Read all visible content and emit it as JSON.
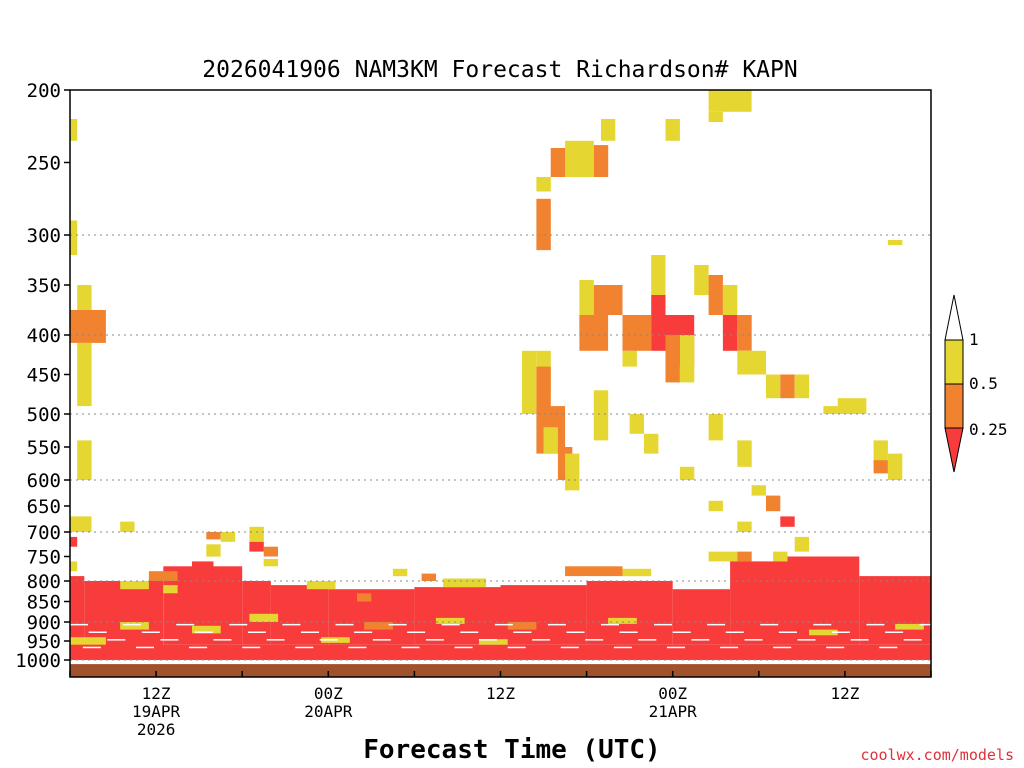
{
  "chart_data": {
    "type": "heatmap",
    "title": "2026041906 NAM3KM Forecast Richardson# KAPN",
    "xlabel": "Forecast Time (UTC)",
    "ylabel": "",
    "x_unit": "forecast hour",
    "xlim": [
      0,
      60
    ],
    "ylim": [
      1050,
      200
    ],
    "y_ticks": [
      200,
      250,
      300,
      350,
      400,
      450,
      500,
      550,
      600,
      650,
      700,
      750,
      800,
      850,
      900,
      950,
      1000
    ],
    "y_gridlines": [
      300,
      400,
      500,
      600,
      700,
      800,
      900,
      1000
    ],
    "x_ticks": [
      {
        "hour": 6,
        "line1": "12Z",
        "line2": "19APR",
        "line3": "2026"
      },
      {
        "hour": 18,
        "line1": "00Z",
        "line2": "20APR",
        "line3": ""
      },
      {
        "hour": 30,
        "line1": "12Z",
        "line2": "",
        "line3": ""
      },
      {
        "hour": 42,
        "line1": "00Z",
        "line2": "21APR",
        "line3": ""
      },
      {
        "hour": 54,
        "line1": "12Z",
        "line2": "",
        "line3": ""
      }
    ],
    "legend": {
      "position": "right",
      "labels": [
        "1",
        "0.5",
        "0.25"
      ],
      "bins": [
        {
          "range": "> 1",
          "color": "#ffffff"
        },
        {
          "range": "0.5 - 1",
          "color": "#e6d632"
        },
        {
          "range": "0.25 - 0.5",
          "color": "#f08230"
        },
        {
          "range": "< 0.25",
          "color": "#f83c3c"
        }
      ]
    },
    "colors": {
      "yellow": "#e6d632",
      "orange": "#f08230",
      "red": "#f83c3c",
      "ground": "#a0522d"
    },
    "ground_below_pressure": 1012,
    "cells_format": "[start_hour, end_hour, top_pressure, bottom_pressure, category]",
    "cells": [
      [
        0,
        0.5,
        220,
        235,
        "y"
      ],
      [
        0,
        0.5,
        290,
        320,
        "y"
      ],
      [
        0.5,
        1.5,
        350,
        390,
        "y"
      ],
      [
        0,
        2.5,
        375,
        410,
        "o"
      ],
      [
        0.5,
        1.5,
        410,
        490,
        "y"
      ],
      [
        0.5,
        1.5,
        540,
        600,
        "y"
      ],
      [
        0,
        1.5,
        670,
        700,
        "y"
      ],
      [
        3.5,
        4.5,
        680,
        700,
        "y"
      ],
      [
        0,
        0.5,
        710,
        730,
        "r"
      ],
      [
        0,
        0.5,
        760,
        780,
        "y"
      ],
      [
        9.5,
        10.5,
        700,
        715,
        "o"
      ],
      [
        10.5,
        11.5,
        700,
        720,
        "y"
      ],
      [
        9.5,
        10.5,
        725,
        750,
        "y"
      ],
      [
        12.5,
        13.5,
        690,
        720,
        "y"
      ],
      [
        12.5,
        13.5,
        720,
        740,
        "r"
      ],
      [
        13.5,
        14.5,
        730,
        750,
        "o"
      ],
      [
        13.5,
        14.5,
        755,
        770,
        "y"
      ],
      [
        32.5,
        33.5,
        260,
        270,
        "y"
      ],
      [
        32.5,
        33.5,
        275,
        315,
        "o"
      ],
      [
        33.5,
        35.5,
        240,
        260,
        "o"
      ],
      [
        34.5,
        36.5,
        235,
        260,
        "y"
      ],
      [
        37,
        38,
        220,
        235,
        "y"
      ],
      [
        36.5,
        37.5,
        238,
        260,
        "o"
      ],
      [
        41.5,
        42.5,
        220,
        235,
        "y"
      ],
      [
        44.5,
        47.5,
        200,
        215,
        "y"
      ],
      [
        44.5,
        45.5,
        215,
        222,
        "y"
      ],
      [
        57,
        58,
        305,
        310,
        "y"
      ],
      [
        31.5,
        32.5,
        420,
        500,
        "y"
      ],
      [
        32.5,
        33.5,
        420,
        470,
        "y"
      ],
      [
        32.5,
        33.5,
        440,
        500,
        "o"
      ],
      [
        32.5,
        34.5,
        490,
        560,
        "o"
      ],
      [
        33,
        34,
        520,
        560,
        "y"
      ],
      [
        34,
        35,
        550,
        600,
        "o"
      ],
      [
        34.5,
        35.5,
        560,
        620,
        "y"
      ],
      [
        35.5,
        36.5,
        345,
        400,
        "y"
      ],
      [
        35.5,
        37.5,
        380,
        420,
        "o"
      ],
      [
        36.5,
        38.5,
        350,
        380,
        "o"
      ],
      [
        36.5,
        37.5,
        470,
        540,
        "y"
      ],
      [
        38.5,
        39.5,
        420,
        440,
        "y"
      ],
      [
        38.5,
        40.5,
        380,
        420,
        "o"
      ],
      [
        40.5,
        41.5,
        320,
        360,
        "y"
      ],
      [
        40.5,
        41.5,
        360,
        420,
        "r"
      ],
      [
        41.5,
        43.5,
        380,
        440,
        "r"
      ],
      [
        41.5,
        42.5,
        400,
        460,
        "o"
      ],
      [
        42.5,
        43.5,
        400,
        460,
        "y"
      ],
      [
        43.5,
        44.5,
        330,
        360,
        "y"
      ],
      [
        44.5,
        45.5,
        340,
        380,
        "o"
      ],
      [
        45.5,
        46.5,
        350,
        400,
        "y"
      ],
      [
        45.5,
        46.5,
        380,
        420,
        "r"
      ],
      [
        46.5,
        47.5,
        380,
        420,
        "o"
      ],
      [
        46.5,
        48.5,
        420,
        450,
        "y"
      ],
      [
        48.5,
        49.5,
        450,
        480,
        "y"
      ],
      [
        49.5,
        50.5,
        450,
        480,
        "o"
      ],
      [
        50.5,
        51.5,
        450,
        480,
        "y"
      ],
      [
        52.5,
        53.5,
        490,
        500,
        "y"
      ],
      [
        53.5,
        55.5,
        480,
        500,
        "y"
      ],
      [
        56,
        57,
        540,
        580,
        "y"
      ],
      [
        56,
        57,
        570,
        590,
        "o"
      ],
      [
        57,
        58,
        560,
        600,
        "y"
      ],
      [
        39,
        40,
        500,
        530,
        "y"
      ],
      [
        40,
        41,
        530,
        560,
        "y"
      ],
      [
        42.5,
        43.5,
        580,
        600,
        "y"
      ],
      [
        44.5,
        45.5,
        500,
        540,
        "y"
      ],
      [
        46.5,
        47.5,
        540,
        580,
        "y"
      ],
      [
        47.5,
        48.5,
        610,
        630,
        "y"
      ],
      [
        48.5,
        49.5,
        630,
        660,
        "o"
      ],
      [
        49.5,
        50.5,
        670,
        690,
        "r"
      ],
      [
        50.5,
        51.5,
        710,
        740,
        "y"
      ],
      [
        44.5,
        45.5,
        640,
        660,
        "y"
      ],
      [
        46.5,
        47.5,
        680,
        700,
        "y"
      ],
      [
        49,
        50,
        740,
        760,
        "y"
      ],
      [
        44.5,
        46.5,
        740,
        760,
        "y"
      ],
      [
        46.5,
        47.5,
        740,
        760,
        "o"
      ],
      [
        47.5,
        48.5,
        760,
        775,
        "y"
      ],
      [
        0,
        1,
        790,
        970,
        "r"
      ],
      [
        1,
        6.5,
        800,
        970,
        "r"
      ],
      [
        6.5,
        8.5,
        770,
        960,
        "r"
      ],
      [
        8.5,
        10,
        760,
        960,
        "r"
      ],
      [
        10,
        12,
        770,
        960,
        "r"
      ],
      [
        12,
        14,
        800,
        960,
        "r"
      ],
      [
        14,
        18,
        810,
        960,
        "r"
      ],
      [
        18,
        24,
        820,
        960,
        "r"
      ],
      [
        24,
        30,
        815,
        960,
        "r"
      ],
      [
        30,
        36,
        810,
        960,
        "r"
      ],
      [
        36,
        42,
        800,
        960,
        "r"
      ],
      [
        42,
        46,
        820,
        960,
        "r"
      ],
      [
        46,
        50,
        760,
        960,
        "r"
      ],
      [
        50,
        55,
        750,
        960,
        "r"
      ],
      [
        55,
        60,
        790,
        960,
        "r"
      ],
      [
        5.5,
        7.5,
        780,
        800,
        "o"
      ],
      [
        6.5,
        7.5,
        810,
        830,
        "y"
      ],
      [
        3.5,
        5.5,
        800,
        820,
        "y"
      ],
      [
        16.5,
        18.5,
        800,
        820,
        "y"
      ],
      [
        20,
        21,
        830,
        850,
        "o"
      ],
      [
        22.5,
        23.5,
        775,
        790,
        "y"
      ],
      [
        24.5,
        25.5,
        785,
        800,
        "o"
      ],
      [
        26,
        29,
        795,
        815,
        "y"
      ],
      [
        34.5,
        38.5,
        770,
        790,
        "o"
      ],
      [
        38.5,
        40.5,
        775,
        790,
        "y"
      ],
      [
        3.5,
        5.5,
        900,
        920,
        "y"
      ],
      [
        8.5,
        10.5,
        910,
        930,
        "y"
      ],
      [
        12.5,
        14.5,
        880,
        900,
        "y"
      ],
      [
        20.5,
        22.5,
        900,
        920,
        "o"
      ],
      [
        25.5,
        27.5,
        890,
        905,
        "y"
      ],
      [
        30.5,
        32.5,
        900,
        920,
        "o"
      ],
      [
        37.5,
        39.5,
        890,
        905,
        "y"
      ],
      [
        0,
        2.5,
        940,
        960,
        "y"
      ],
      [
        17.5,
        19.5,
        940,
        955,
        "y"
      ],
      [
        28.5,
        30.5,
        945,
        960,
        "y"
      ],
      [
        51.5,
        53.5,
        920,
        935,
        "y"
      ],
      [
        57.5,
        59.5,
        905,
        920,
        "y"
      ],
      [
        0,
        60,
        960,
        1000,
        "r"
      ]
    ]
  },
  "credit": "coolwx.com/models"
}
